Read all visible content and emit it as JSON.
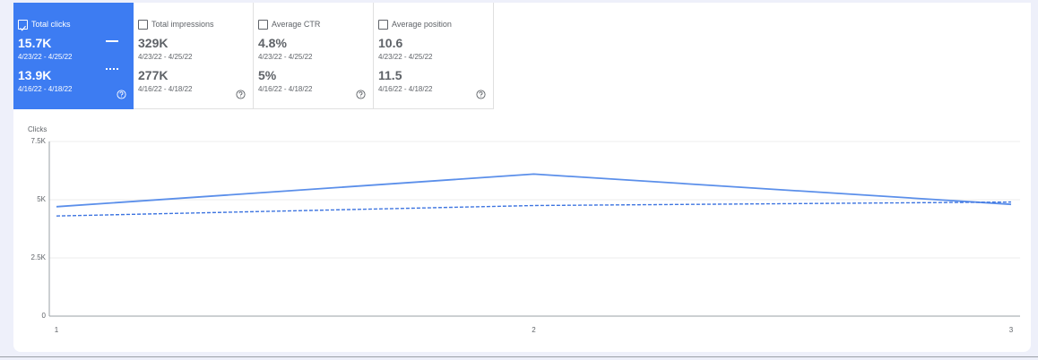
{
  "cards": [
    {
      "label": "Total clicks",
      "current": "15.7K",
      "current_range": "4/23/22 - 4/25/22",
      "previous": "13.9K",
      "previous_range": "4/16/22 - 4/18/22",
      "selected": true
    },
    {
      "label": "Total impressions",
      "current": "329K",
      "current_range": "4/23/22 - 4/25/22",
      "previous": "277K",
      "previous_range": "4/16/22 - 4/18/22",
      "selected": false
    },
    {
      "label": "Average CTR",
      "current": "4.8%",
      "current_range": "4/23/22 - 4/25/22",
      "previous": "5%",
      "previous_range": "4/16/22 - 4/18/22",
      "selected": false
    },
    {
      "label": "Average position",
      "current": "10.6",
      "current_range": "4/23/22 - 4/25/22",
      "previous": "11.5",
      "previous_range": "4/16/22 - 4/18/22",
      "selected": false
    }
  ],
  "chart_data": {
    "type": "line",
    "y_label": "Clicks",
    "x": [
      1,
      2,
      3
    ],
    "xlim": [
      1,
      3
    ],
    "xticks": [
      1,
      2,
      3
    ],
    "ylim": [
      0,
      7500
    ],
    "yticks": [
      0,
      {
        "value": 2500,
        "label": "2.5K"
      },
      {
        "value": 5000,
        "label": "5K"
      },
      {
        "value": 7500,
        "label": "7.5K"
      }
    ],
    "grid": true,
    "series": [
      {
        "color": "#5b8fea",
        "dashed": false,
        "values": [
          4700,
          6100,
          4800
        ]
      },
      {
        "color": "#3d74e0",
        "dashed": true,
        "values": [
          4300,
          4750,
          4900
        ]
      }
    ]
  }
}
